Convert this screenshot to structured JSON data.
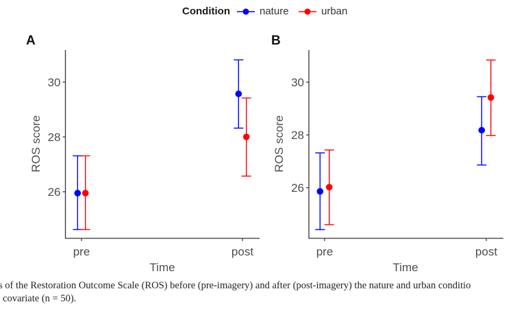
{
  "legend": {
    "title": "Condition",
    "items": [
      {
        "label": "nature",
        "color": "#0000ff"
      },
      {
        "label": "urban",
        "color": "#ff0000"
      }
    ]
  },
  "chart_data": [
    {
      "type": "errorbar",
      "panel_label": "A",
      "xlabel": "Time",
      "ylabel": "ROS score",
      "categories": [
        "pre",
        "post"
      ],
      "ylim": [
        24.3,
        31.17
      ],
      "yticks": [
        26,
        28,
        30
      ],
      "grid": false,
      "legend_position": "top",
      "series": [
        {
          "name": "nature",
          "color": "#0000ff",
          "values": [
            25.95,
            29.57
          ],
          "lower": [
            24.62,
            28.32
          ],
          "upper": [
            27.31,
            30.81
          ]
        },
        {
          "name": "urban",
          "color": "#ff0000",
          "values": [
            25.95,
            28.0
          ],
          "lower": [
            24.62,
            26.57
          ],
          "upper": [
            27.31,
            29.42
          ]
        }
      ]
    },
    {
      "type": "errorbar",
      "panel_label": "B",
      "xlabel": "Time",
      "ylabel": "ROS score",
      "categories": [
        "pre",
        "post"
      ],
      "ylim": [
        24.08,
        31.22
      ],
      "yticks": [
        26,
        28,
        30
      ],
      "grid": false,
      "legend_position": "top",
      "series": [
        {
          "name": "nature",
          "color": "#0000ff",
          "values": [
            25.86,
            28.18
          ],
          "lower": [
            24.41,
            26.86
          ],
          "upper": [
            27.32,
            29.45
          ]
        },
        {
          "name": "urban",
          "color": "#ff0000",
          "values": [
            26.02,
            29.42
          ],
          "lower": [
            24.6,
            27.98
          ],
          "upper": [
            27.43,
            30.84
          ]
        }
      ]
    }
  ],
  "caption": {
    "line1": "ts of the Restoration Outcome Scale (ROS) before (pre-imagery) and after (post-imagery) the nature and urban conditio",
    "line2": "e covariate (n = 50)."
  }
}
